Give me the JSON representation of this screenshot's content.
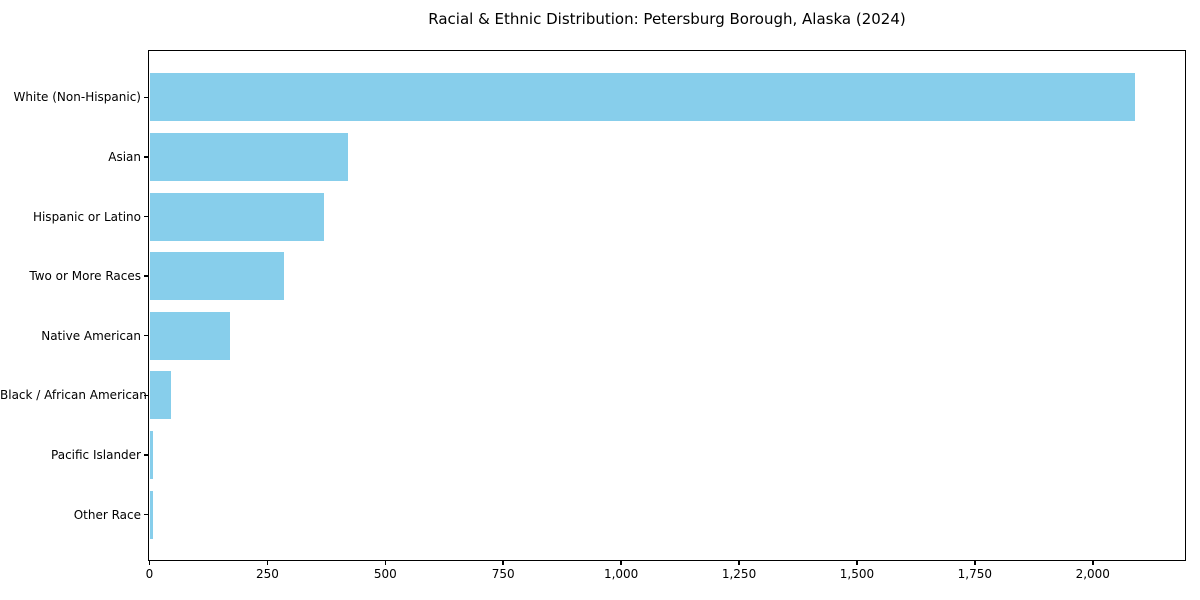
{
  "chart_data": {
    "type": "bar",
    "orientation": "horizontal",
    "title": "Racial & Ethnic Distribution: Petersburg Borough, Alaska (2024)",
    "categories": [
      "White (Non-Hispanic)",
      "Asian",
      "Hispanic or Latino",
      "Two or More Races",
      "Native American",
      "Black / African American",
      "Pacific Islander",
      "Other Race"
    ],
    "values": [
      2090,
      420,
      370,
      285,
      170,
      45,
      8,
      7
    ],
    "xlabel": "",
    "ylabel": "",
    "xlim": [
      0,
      2195
    ],
    "x_ticks": [
      0,
      250,
      500,
      750,
      1000,
      1250,
      1500,
      1750,
      2000
    ],
    "x_tick_labels": [
      "0",
      "250",
      "500",
      "750",
      "1,000",
      "1,250",
      "1,500",
      "1,750",
      "2,000"
    ],
    "bar_color": "#87CEEB",
    "text_color": "#000000",
    "spine_color": "#000000",
    "grid": false,
    "legend": "none"
  }
}
